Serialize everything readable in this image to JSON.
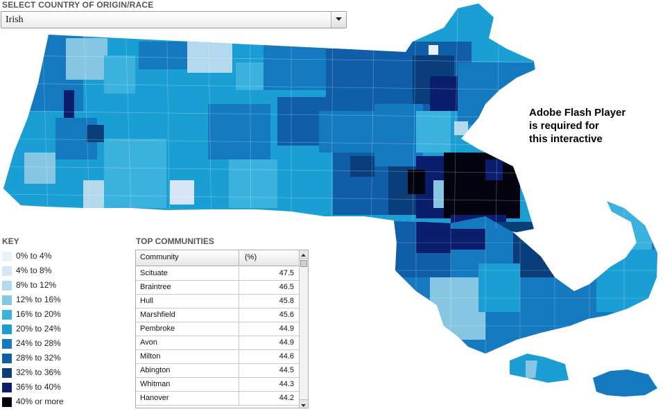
{
  "selector": {
    "label": "SELECT COUNTRY OF ORIGIN/RACE",
    "value": "Irish"
  },
  "overlay": {
    "lines": [
      "Adobe Flash Player",
      "is required for",
      "this interactive"
    ]
  },
  "key": {
    "title": "KEY",
    "items": [
      {
        "label": "0% to 4%",
        "color": "#e9f1fb"
      },
      {
        "label": "4% to 8%",
        "color": "#d6e6f6"
      },
      {
        "label": "8% to 12%",
        "color": "#b4d8ee"
      },
      {
        "label": "12% to 16%",
        "color": "#86c6e2"
      },
      {
        "label": "16% to 20%",
        "color": "#3bb1dd"
      },
      {
        "label": "20% to 24%",
        "color": "#1a9ed3"
      },
      {
        "label": "24% to 28%",
        "color": "#1579bf"
      },
      {
        "label": "28% to 32%",
        "color": "#0f5ea7"
      },
      {
        "label": "32% to 36%",
        "color": "#0a3e7a"
      },
      {
        "label": "36% to 40%",
        "color": "#0b1e6e"
      },
      {
        "label": "40% or more",
        "color": "#040411"
      }
    ]
  },
  "top_communities": {
    "title": "TOP COMMUNITIES",
    "col_community": "Community",
    "col_percent": "(%)",
    "rows": [
      {
        "name": "Scituate",
        "value": "47.5"
      },
      {
        "name": "Braintree",
        "value": "46.5"
      },
      {
        "name": "Hull",
        "value": "45.8"
      },
      {
        "name": "Marshfield",
        "value": "45.6"
      },
      {
        "name": "Pembroke",
        "value": "44.9"
      },
      {
        "name": "Avon",
        "value": "44.9"
      },
      {
        "name": "Milton",
        "value": "44.6"
      },
      {
        "name": "Abington",
        "value": "44.5"
      },
      {
        "name": "Whitman",
        "value": "44.3"
      },
      {
        "name": "Hanover",
        "value": "44.2"
      }
    ]
  }
}
